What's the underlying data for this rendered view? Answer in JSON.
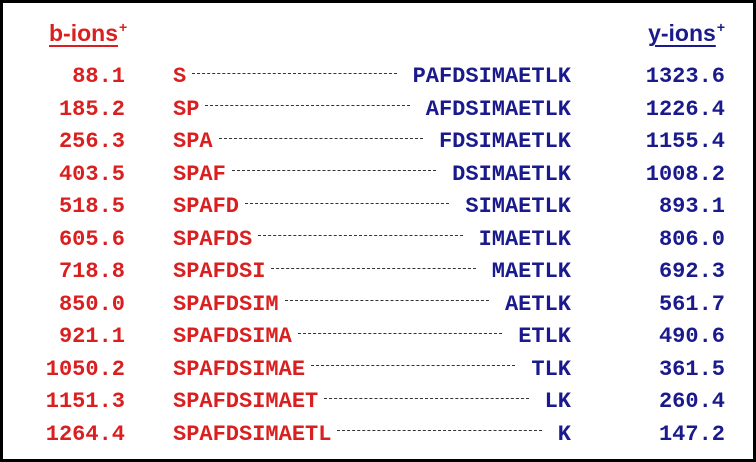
{
  "headers": {
    "b_label": "b-ions",
    "b_charge": "+",
    "y_label": "y-ions",
    "y_charge": "+"
  },
  "colors": {
    "b_ions": "#d91f1f",
    "y_ions": "#1a1a8c"
  },
  "rows": [
    {
      "b_mass": "88.1",
      "b_seq": "S",
      "y_seq": "PAFDSIMAETLK",
      "y_mass": "1323.6"
    },
    {
      "b_mass": "185.2",
      "b_seq": "SP",
      "y_seq": "AFDSIMAETLK",
      "y_mass": "1226.4"
    },
    {
      "b_mass": "256.3",
      "b_seq": "SPA",
      "y_seq": "FDSIMAETLK",
      "y_mass": "1155.4"
    },
    {
      "b_mass": "403.5",
      "b_seq": "SPAF",
      "y_seq": "DSIMAETLK",
      "y_mass": "1008.2"
    },
    {
      "b_mass": "518.5",
      "b_seq": "SPAFD",
      "y_seq": "SIMAETLK",
      "y_mass": "893.1"
    },
    {
      "b_mass": "605.6",
      "b_seq": "SPAFDS",
      "y_seq": "IMAETLK",
      "y_mass": "806.0"
    },
    {
      "b_mass": "718.8",
      "b_seq": "SPAFDSI",
      "y_seq": "MAETLK",
      "y_mass": "692.3"
    },
    {
      "b_mass": "850.0",
      "b_seq": "SPAFDSIM",
      "y_seq": "AETLK",
      "y_mass": "561.7"
    },
    {
      "b_mass": "921.1",
      "b_seq": "SPAFDSIMA",
      "y_seq": "ETLK",
      "y_mass": "490.6"
    },
    {
      "b_mass": "1050.2",
      "b_seq": "SPAFDSIMAE",
      "y_seq": "TLK",
      "y_mass": "361.5"
    },
    {
      "b_mass": "1151.3",
      "b_seq": "SPAFDSIMAET",
      "y_seq": "LK",
      "y_mass": "260.4"
    },
    {
      "b_mass": "1264.4",
      "b_seq": "SPAFDSIMAETL",
      "y_seq": "K",
      "y_mass": "147.2"
    }
  ]
}
